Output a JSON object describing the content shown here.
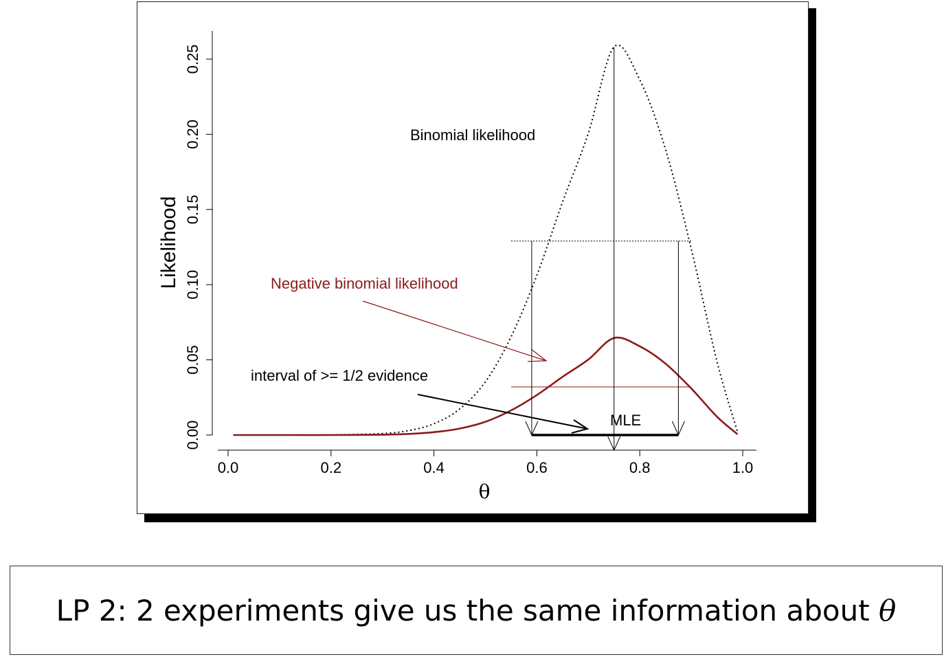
{
  "chart_data": {
    "type": "line",
    "xlabel": "θ",
    "ylabel": "Likelihood",
    "xlim": [
      0.0,
      1.0
    ],
    "ylim": [
      0.0,
      0.25
    ],
    "xticks": [
      "0.0",
      "0.2",
      "0.4",
      "0.6",
      "0.8",
      "1.0"
    ],
    "yticks": [
      "0.00",
      "0.05",
      "0.10",
      "0.15",
      "0.20",
      "0.25"
    ],
    "grid": false,
    "series": [
      {
        "name": "Binomial likelihood",
        "style": "dotted",
        "color": "#000000",
        "x": [
          0.01,
          0.1,
          0.2,
          0.3,
          0.35,
          0.4,
          0.45,
          0.5,
          0.55,
          0.6,
          0.65,
          0.7,
          0.75,
          0.8,
          0.85,
          0.9,
          0.95,
          0.99
        ],
        "y": [
          0.0,
          0.0,
          0.0001,
          0.001,
          0.0029,
          0.0075,
          0.0173,
          0.0354,
          0.0654,
          0.1062,
          0.155,
          0.2007,
          0.2581,
          0.2362,
          0.19,
          0.1239,
          0.0489,
          0.002
        ]
      },
      {
        "name": "Negative binomial likelihood",
        "style": "solid",
        "color": "#8b1a1a",
        "x": [
          0.01,
          0.1,
          0.2,
          0.3,
          0.35,
          0.4,
          0.45,
          0.5,
          0.55,
          0.6,
          0.65,
          0.7,
          0.75,
          0.8,
          0.85,
          0.9,
          0.95,
          0.99
        ],
        "y": [
          0.0,
          0.0,
          0.0,
          0.0002,
          0.0007,
          0.0019,
          0.0043,
          0.0088,
          0.0164,
          0.0266,
          0.0387,
          0.0502,
          0.0645,
          0.059,
          0.0475,
          0.031,
          0.0122,
          0.0005
        ]
      }
    ],
    "annotations": {
      "binomial_label": "Binomial likelihood",
      "negbin_label": "Negative binomial likelihood",
      "interval_label": "interval of >= 1/2 evidence",
      "mle_label": "MLE",
      "mle": 0.75,
      "interval": [
        0.59,
        0.875
      ],
      "binomial_half_level": 0.129,
      "negbin_half_level": 0.032
    }
  },
  "colors": {
    "binomial": "#000000",
    "negbin": "#8b1a1a"
  },
  "caption": {
    "text": "LP 2: 2 experiments give us the same information about ",
    "symbol": "θ"
  }
}
